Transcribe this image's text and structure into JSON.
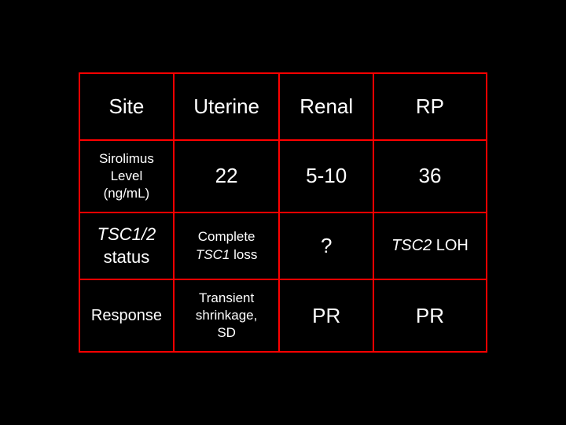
{
  "table": {
    "type": "table",
    "border_color": "#ff0000",
    "background_color": "#000000",
    "text_color": "#ffffff",
    "columns": 4,
    "rows": 4,
    "cells": {
      "r0c0": "Site",
      "r0c1": "Uterine",
      "r0c2": "Renal",
      "r0c3": "RP",
      "r1c0_line1": "Sirolimus",
      "r1c0_line2": "Level",
      "r1c0_line3": "(ng/mL)",
      "r1c1": "22",
      "r1c2": "5-10",
      "r1c3": "36",
      "r2c0_line1": "TSC1/2",
      "r2c0_line2": "status",
      "r2c1_line1": "Complete",
      "r2c1_line2_pre": "TSC1",
      "r2c1_line2_post": " loss",
      "r2c2": "?",
      "r2c3_pre": "TSC2",
      "r2c3_post": " LOH",
      "r3c0": "Response",
      "r3c1_line1": "Transient",
      "r3c1_line2": "shrinkage,",
      "r3c1_line3": "SD",
      "r3c2": "PR",
      "r3c3": "PR"
    }
  }
}
